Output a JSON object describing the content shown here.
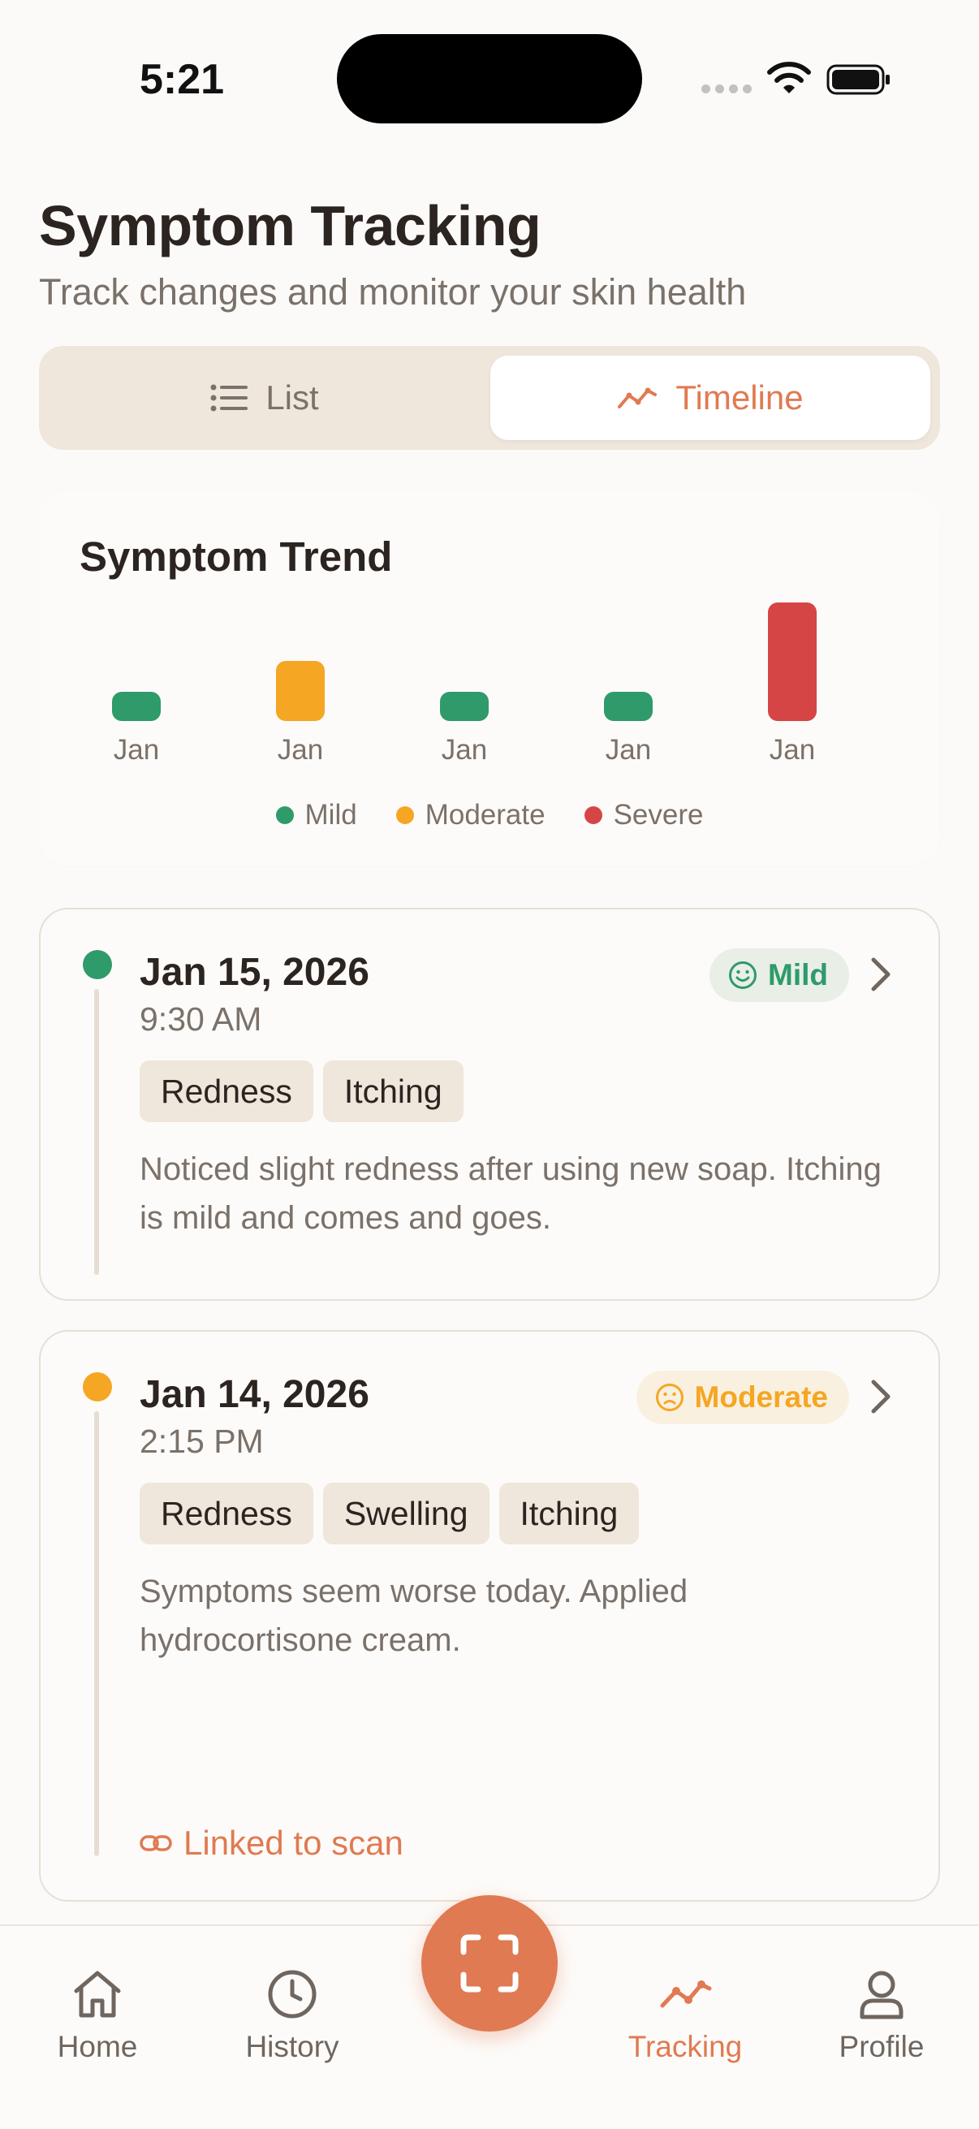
{
  "status": {
    "time": "5:21"
  },
  "header": {
    "title": "Symptom Tracking",
    "subtitle": "Track changes and monitor your skin health"
  },
  "view_toggle": {
    "list_label": "List",
    "timeline_label": "Timeline",
    "selected": "Timeline"
  },
  "trend": {
    "title": "Symptom Trend",
    "legend": [
      {
        "label": "Mild",
        "color": "#2f9a6a"
      },
      {
        "label": "Moderate",
        "color": "#f5a623"
      },
      {
        "label": "Severe",
        "color": "#d64545"
      }
    ]
  },
  "chart_data": {
    "type": "bar",
    "title": "Symptom Trend",
    "categories": [
      "Jan",
      "Jan",
      "Jan",
      "Jan",
      "Jan"
    ],
    "values": [
      1,
      2,
      1,
      1,
      3
    ],
    "severity": [
      "Mild",
      "Moderate",
      "Mild",
      "Mild",
      "Severe"
    ],
    "colors": [
      "#2f9a6a",
      "#f5a623",
      "#2f9a6a",
      "#2f9a6a",
      "#d64545"
    ],
    "ylim": [
      0,
      3
    ]
  },
  "entries": [
    {
      "date": "Jan 15, 2026",
      "time": "9:30 AM",
      "severity": "Mild",
      "severity_color": "#2f9a6a",
      "tags": [
        "Redness",
        "Itching"
      ],
      "note": "Noticed slight redness after using new soap. Itching is mild and comes and goes."
    },
    {
      "date": "Jan 14, 2026",
      "time": "2:15 PM",
      "severity": "Moderate",
      "severity_color": "#f5a623",
      "tags": [
        "Redness",
        "Swelling",
        "Itching"
      ],
      "note": "Symptoms seem worse today. Applied hydrocortisone cream.",
      "linked_label": "Linked to scan"
    }
  ],
  "tabbar": {
    "home": "Home",
    "history": "History",
    "tracking": "Tracking",
    "profile": "Profile",
    "active": "Tracking",
    "accent": "#e07a52"
  }
}
